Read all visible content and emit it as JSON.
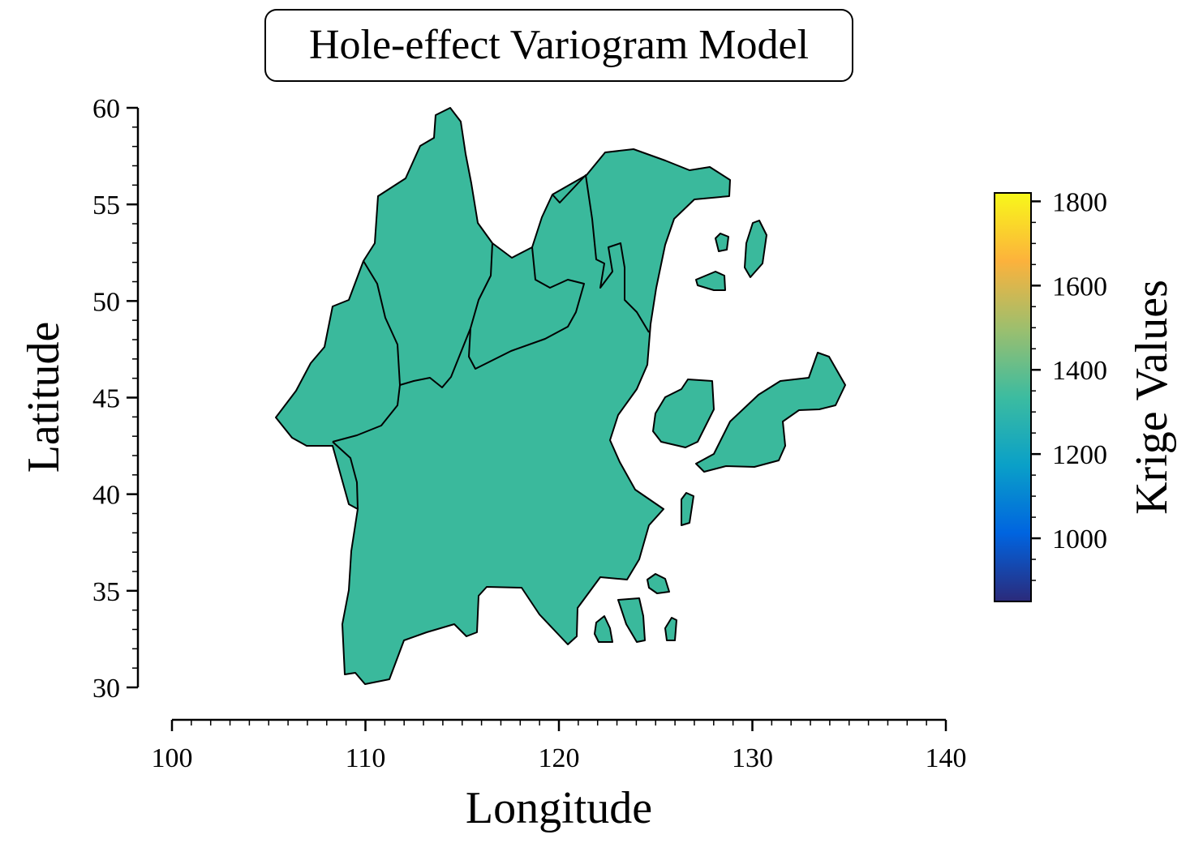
{
  "title": "Hole-effect Variogram Model",
  "axes": {
    "xlabel": "Longitude",
    "ylabel": "Latitude",
    "xlim": [
      100,
      140
    ],
    "ylim": [
      30,
      60
    ],
    "xticks": [
      100,
      110,
      120,
      130,
      140
    ],
    "yticks": [
      30,
      35,
      40,
      45,
      50,
      55,
      60
    ]
  },
  "colorbar": {
    "label": "Krige Values",
    "range": [
      850,
      1820
    ],
    "ticks": [
      1000,
      1200,
      1400,
      1600,
      1800
    ],
    "colors": [
      "#2b2a7a",
      "#0064e0",
      "#0aa0c8",
      "#3cbca0",
      "#9cbf6e",
      "#fcb23c",
      "#f8f81a"
    ]
  },
  "map": {
    "fill_color": "#3ab99c",
    "border_color": "#000000"
  }
}
